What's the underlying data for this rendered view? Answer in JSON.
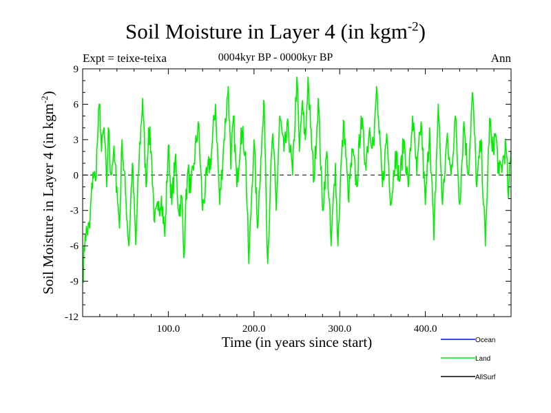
{
  "chart_data": {
    "type": "line",
    "title": "Soil Moisture in Layer 4 (in kgm",
    "title_exponent": "-2",
    "title_suffix": ")",
    "subtitle": "0004kyr BP - 0000kyr BP",
    "expt_label": "Expt = teixe-teixa",
    "season_label": "Ann",
    "xlabel": "Time (in years since start)",
    "ylabel": "Soil Moisture in Layer 4 (in kgm",
    "ylabel_exponent": "-2",
    "ylabel_suffix": ")",
    "xlim": [
      0,
      500
    ],
    "ylim": [
      -12,
      9
    ],
    "x_ticks": [
      100,
      200,
      300,
      400
    ],
    "x_tick_labels": [
      "100.0",
      "200.0",
      "300.0",
      "400.0"
    ],
    "y_ticks": [
      -12,
      -9,
      -6,
      -3,
      0,
      3,
      6,
      9
    ],
    "y_tick_labels": [
      "-12",
      "-9",
      "-6",
      "-3",
      "0",
      "3",
      "6",
      "9"
    ],
    "zero_line": true,
    "legend": [
      {
        "name": "Ocean",
        "color": "#0000ff"
      },
      {
        "name": "Land",
        "color": "#00ee00"
      },
      {
        "name": "AllSurf",
        "color": "#000000"
      }
    ],
    "series": [
      {
        "name": "Land",
        "color": "#00ee00",
        "x": [
          0,
          3,
          8,
          12,
          15,
          18,
          20,
          22,
          25,
          28,
          30,
          33,
          36,
          40,
          43,
          46,
          50,
          54,
          58,
          62,
          66,
          70,
          74,
          77,
          80,
          84,
          88,
          92,
          96,
          100,
          104,
          108,
          112,
          116,
          118,
          120,
          123,
          126,
          130,
          135,
          140,
          145,
          150,
          155,
          160,
          165,
          170,
          173,
          176,
          180,
          185,
          190,
          194,
          197,
          200,
          204,
          208,
          212,
          216,
          219,
          222,
          226,
          230,
          235,
          240,
          245,
          250,
          253,
          256,
          260,
          263,
          266,
          270,
          275,
          280,
          285,
          290,
          295,
          298,
          301,
          305,
          310,
          315,
          320,
          325,
          330,
          335,
          340,
          343,
          346,
          350,
          355,
          360,
          365,
          370,
          375,
          380,
          385,
          390,
          395,
          400,
          405,
          410,
          415,
          420,
          425,
          430,
          435,
          440,
          445,
          450,
          455,
          460,
          465,
          470,
          475,
          478,
          482,
          486,
          490,
          494,
          497,
          500
        ],
        "values": [
          -9.0,
          -5.0,
          -4.5,
          0.2,
          -0.5,
          4.0,
          6.0,
          2.0,
          4.0,
          -1.0,
          4.0,
          0.0,
          2.0,
          -1.0,
          -4.5,
          3.0,
          -1.5,
          -6.0,
          1.0,
          -5.9,
          1.5,
          6.5,
          -1.0,
          4.0,
          2.0,
          -4.0,
          -3.0,
          -1.8,
          -5.2,
          2.5,
          -2.5,
          1.5,
          -3.0,
          -2.0,
          -7.0,
          -3.0,
          0.5,
          -1.5,
          1.0,
          4.5,
          -3.0,
          0.0,
          1.5,
          6.0,
          -2.5,
          3.0,
          7.5,
          0.5,
          5.0,
          -1.0,
          4.0,
          2.0,
          -7.5,
          -2.0,
          3.0,
          -4.5,
          1.5,
          6.0,
          -7.5,
          -1.0,
          3.5,
          -3.0,
          5.0,
          2.0,
          4.0,
          0.0,
          8.3,
          2.0,
          6.0,
          3.0,
          8.3,
          4.0,
          -0.5,
          6.5,
          -3.0,
          2.0,
          -6.0,
          1.0,
          -6.0,
          0.0,
          4.5,
          -2.0,
          2.0,
          -1.0,
          5.0,
          1.0,
          4.0,
          2.5,
          7.5,
          3.5,
          -1.0,
          3.5,
          -2.5,
          2.0,
          -0.5,
          3.0,
          -1.0,
          5.0,
          0.0,
          4.5,
          -2.5,
          4.0,
          -5.5,
          6.0,
          -2.5,
          3.0,
          0.0,
          5.0,
          -2.5,
          4.5,
          0.0,
          7.0,
          -1.0,
          3.0,
          -6.0,
          4.8,
          2.0,
          3.5,
          0.0,
          1.0,
          2.5,
          -2.0,
          2.0
        ]
      }
    ]
  }
}
